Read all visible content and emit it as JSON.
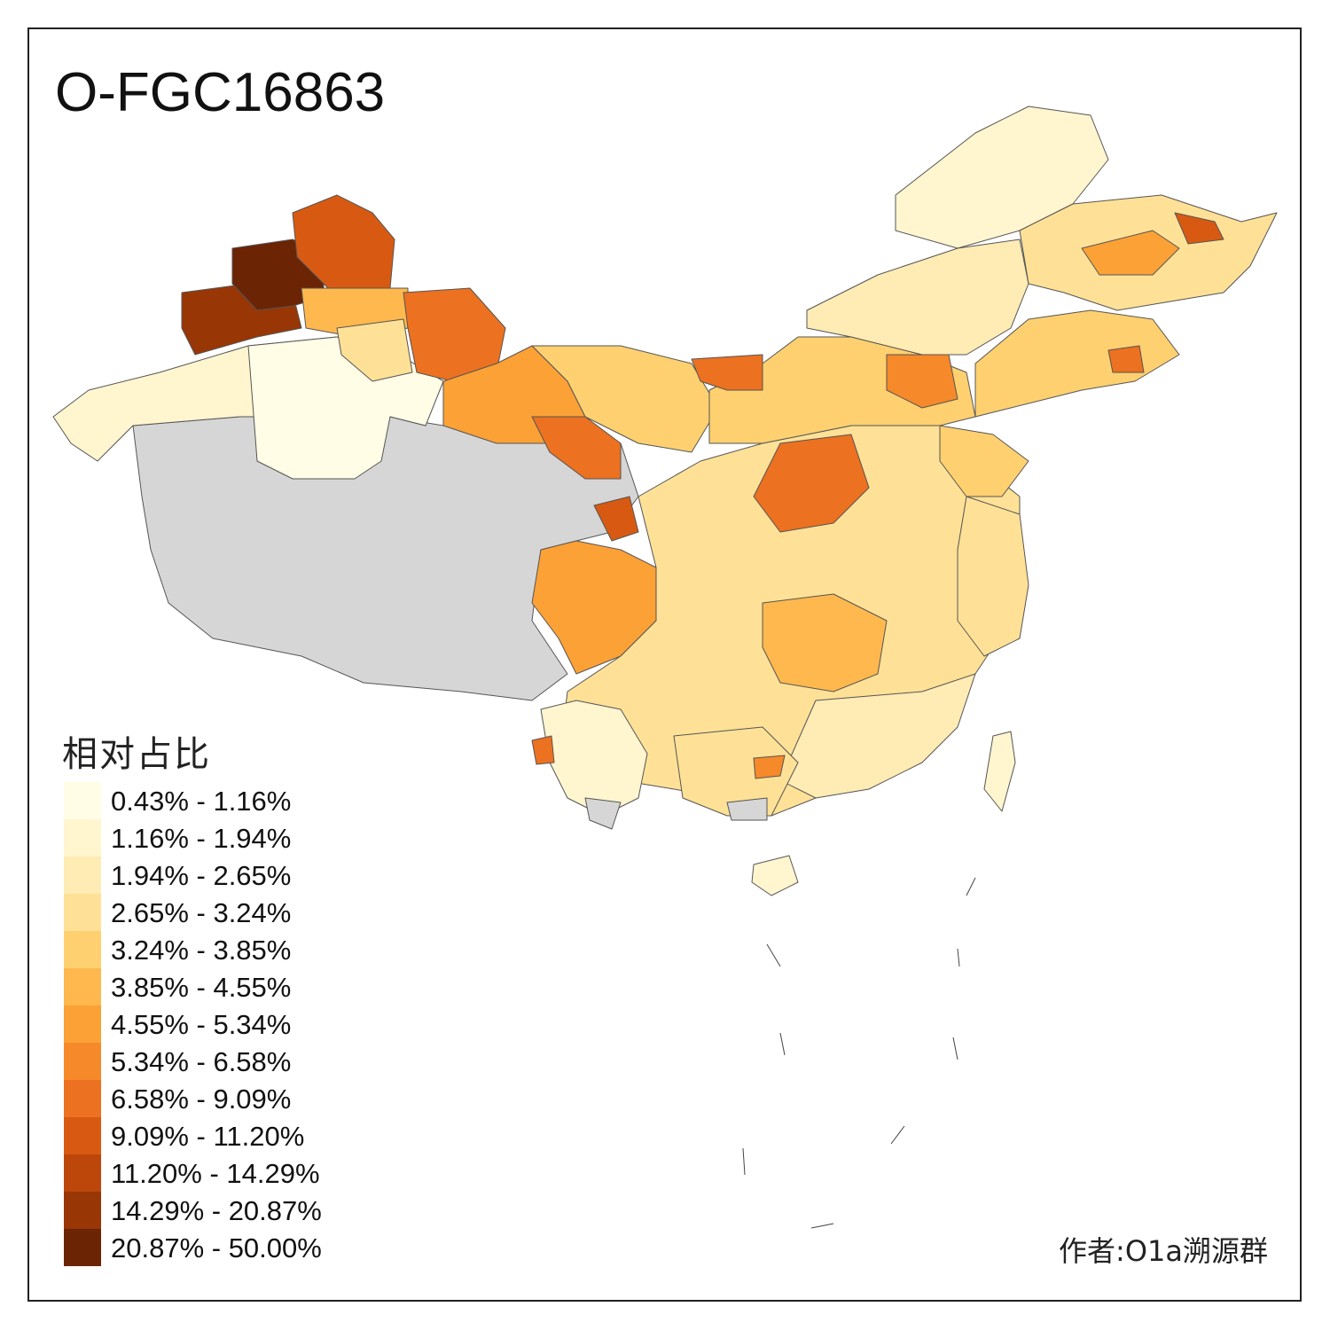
{
  "title": "O-FGC16863",
  "legend": {
    "title": "相对占比",
    "items": [
      {
        "label": "0.43% - 1.16%",
        "color": "#fffde6"
      },
      {
        "label": "1.16% - 1.94%",
        "color": "#fff5cf"
      },
      {
        "label": "1.94% - 2.65%",
        "color": "#ffebb4"
      },
      {
        "label": "2.65% - 3.24%",
        "color": "#fee196"
      },
      {
        "label": "3.24% - 3.85%",
        "color": "#fed070"
      },
      {
        "label": "3.85% - 4.55%",
        "color": "#feb84e"
      },
      {
        "label": "4.55% - 5.34%",
        "color": "#fca136"
      },
      {
        "label": "5.34% - 6.58%",
        "color": "#f6892a"
      },
      {
        "label": "6.58% - 9.09%",
        "color": "#ec7120"
      },
      {
        "label": "9.09% - 11.20%",
        "color": "#d85a12"
      },
      {
        "label": "11.20% - 14.29%",
        "color": "#bd470a"
      },
      {
        "label": "14.29% - 20.87%",
        "color": "#983605"
      },
      {
        "label": "20.87% - 50.00%",
        "color": "#6b2404"
      }
    ]
  },
  "no_data_color": "#d6d6d6",
  "author": "作者:O1a溯源群"
}
